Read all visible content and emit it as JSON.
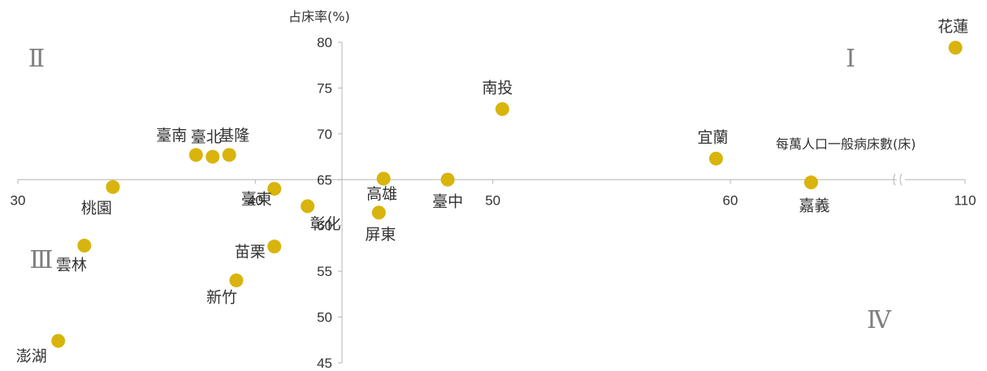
{
  "chart_data": {
    "type": "scatter",
    "xlabel": "每萬人口一般病床數(床)",
    "ylabel": "占床率(%)",
    "x_ticks": [
      "30",
      "40",
      "50",
      "60",
      "110"
    ],
    "y_ticks": [
      "45",
      "50",
      "55",
      "60",
      "65",
      "70",
      "75",
      "80"
    ],
    "ylim": [
      45,
      80
    ],
    "x_axis_break": "between 60 and 110",
    "x_axis_crossing_y": 65,
    "marker_color": "#d8b40c",
    "quadrant_labels": [
      "Ⅰ",
      "Ⅱ",
      "Ⅲ",
      "Ⅳ"
    ],
    "points": [
      {
        "name": "花蓮",
        "x": 108.4,
        "y": 79.4
      },
      {
        "name": "南投",
        "x": 50.4,
        "y": 72.7
      },
      {
        "name": "宜蘭",
        "x": 59.4,
        "y": 67.3
      },
      {
        "name": "嘉義",
        "x": 64.9,
        "y": 64.7
      },
      {
        "name": "臺南",
        "x": 37.5,
        "y": 67.7
      },
      {
        "name": "臺北",
        "x": 38.2,
        "y": 67.5
      },
      {
        "name": "基隆",
        "x": 38.9,
        "y": 67.7
      },
      {
        "name": "桃園",
        "x": 34.0,
        "y": 64.2
      },
      {
        "name": "臺東",
        "x": 40.8,
        "y": 64.0
      },
      {
        "name": "彰化",
        "x": 42.2,
        "y": 62.1
      },
      {
        "name": "高雄",
        "x": 45.4,
        "y": 65.1
      },
      {
        "name": "臺中",
        "x": 48.1,
        "y": 65.0
      },
      {
        "name": "屏東",
        "x": 45.2,
        "y": 61.4
      },
      {
        "name": "苗栗",
        "x": 40.8,
        "y": 57.7
      },
      {
        "name": "雲林",
        "x": 32.8,
        "y": 57.8
      },
      {
        "name": "新竹",
        "x": 39.2,
        "y": 54.0
      },
      {
        "name": "澎湖",
        "x": 31.7,
        "y": 47.4
      }
    ]
  }
}
